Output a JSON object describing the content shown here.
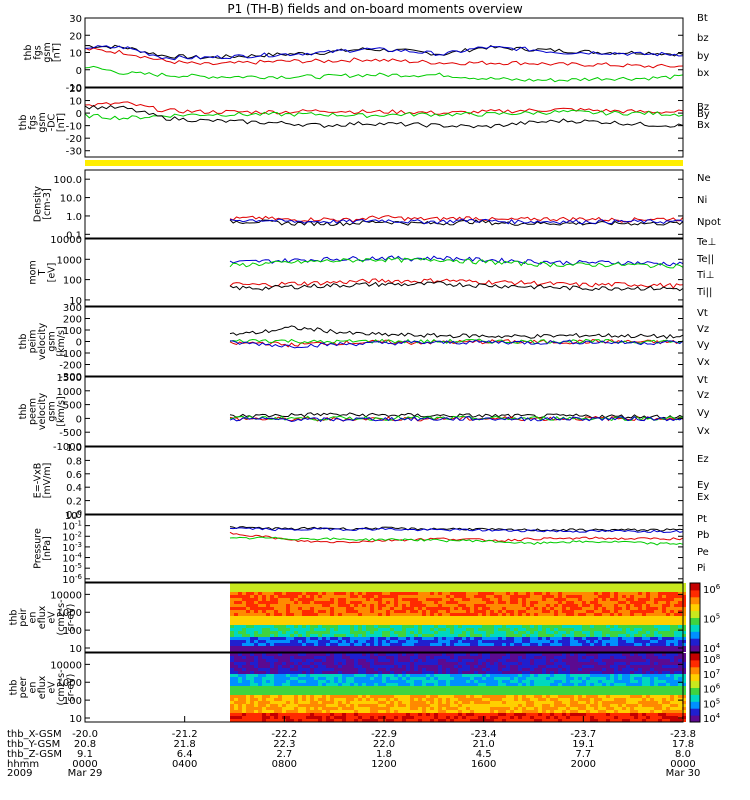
{
  "figure": {
    "title": "P1 (TH-B) fields and on-board moments overview"
  },
  "chart_data": [
    {
      "id": "fgs-gsm",
      "type": "line",
      "ylabel": [
        "thb",
        "fgs",
        "gsm",
        "[nT]"
      ],
      "yticks": [
        "30",
        "20",
        "10",
        "0",
        "-10"
      ],
      "ylim": [
        -10,
        30
      ],
      "series": [
        {
          "name": "Bt",
          "color": "#000000",
          "values": [
            14,
            13,
            8,
            7,
            8,
            9,
            10,
            12,
            11,
            9,
            13,
            12,
            11,
            10,
            10,
            9
          ]
        },
        {
          "name": "bz",
          "color": "#e00000",
          "values": [
            12,
            10,
            5,
            3,
            4,
            5,
            5,
            6,
            5,
            4,
            4,
            4,
            3,
            3,
            2,
            2
          ]
        },
        {
          "name": "by",
          "color": "#00cc00",
          "values": [
            2,
            -2,
            -3,
            -4,
            -4,
            -4,
            -4,
            -3,
            -3,
            -3,
            -5,
            -6,
            -6,
            -5,
            -5,
            -4
          ]
        },
        {
          "name": "bx",
          "color": "#0000cc",
          "values": [
            13,
            13,
            7,
            7,
            8,
            9,
            10,
            12,
            11,
            9,
            13,
            12,
            10,
            10,
            9,
            9
          ]
        }
      ]
    },
    {
      "id": "fgs-gsm-dc",
      "type": "line",
      "ylabel": [
        "thb",
        "fgs",
        "gsm",
        "-DC",
        "[nT]"
      ],
      "yticks": [
        "20",
        "10",
        "0",
        "-10",
        "-20",
        "-30"
      ],
      "ylim": [
        -35,
        20
      ],
      "series": [
        {
          "name": "Bz",
          "color": "#e00000",
          "values": [
            6,
            8,
            2,
            1,
            1,
            1,
            2,
            1,
            1,
            0,
            1,
            2,
            3,
            2,
            1,
            1
          ]
        },
        {
          "name": "By",
          "color": "#00cc00",
          "values": [
            -2,
            -4,
            -2,
            -1,
            -1,
            -1,
            -1,
            -2,
            -1,
            -1,
            -1,
            0,
            1,
            0,
            0,
            -1
          ]
        },
        {
          "name": "Bx",
          "color": "#000000",
          "values": [
            5,
            4,
            -4,
            -6,
            -7,
            -8,
            -10,
            -8,
            -9,
            -10,
            -11,
            -8,
            -6,
            -7,
            -9,
            -10
          ]
        }
      ]
    },
    {
      "id": "density",
      "type": "line",
      "ylabel": [
        "Density",
        "[cm-3]"
      ],
      "yticks": [
        "100.0",
        "10.0",
        "1.0",
        "0.1"
      ],
      "log_range": [
        -1.2,
        2.5
      ],
      "series": [
        {
          "name": "Ne",
          "color": "#e00000",
          "values": [
            0.7,
            0.8,
            0.6,
            0.7,
            0.6,
            0.9,
            0.7,
            0.7,
            0.8,
            0.6,
            0.7,
            0.7,
            0.7,
            0.6,
            0.7,
            0.7
          ]
        },
        {
          "name": "Ni",
          "color": "#000000",
          "values": [
            0.5,
            0.5,
            0.4,
            0.4,
            0.4,
            0.5,
            0.4,
            0.4,
            0.5,
            0.4,
            0.4,
            0.4,
            0.4,
            0.4,
            0.4,
            0.4
          ]
        },
        {
          "name": "Npot",
          "color": "#0000cc",
          "values": [
            0.6,
            0.6,
            0.5,
            0.5,
            0.5,
            0.6,
            0.5,
            0.5,
            0.6,
            0.5,
            0.5,
            0.5,
            0.5,
            0.5,
            0.5,
            0.5
          ]
        }
      ]
    },
    {
      "id": "temperature",
      "type": "line",
      "ylabel": [
        "mom",
        "T",
        "[eV]"
      ],
      "yticks": [
        "10000",
        "1000",
        "100",
        "10"
      ],
      "log_range": [
        0.7,
        4.0
      ],
      "series": [
        {
          "name": "Te⊥",
          "color": "#e00000",
          "values": [
            60,
            55,
            65,
            70,
            80,
            90,
            85,
            95,
            80,
            75,
            70,
            60,
            55,
            60,
            55,
            50
          ]
        },
        {
          "name": "Te||",
          "color": "#000000",
          "values": [
            40,
            38,
            45,
            50,
            55,
            60,
            58,
            65,
            55,
            50,
            45,
            40,
            38,
            40,
            38,
            35
          ]
        },
        {
          "name": "Ti⊥",
          "color": "#0000cc",
          "values": [
            700,
            800,
            900,
            1000,
            1100,
            1200,
            1100,
            1200,
            1000,
            900,
            800,
            700,
            700,
            700,
            650,
            600
          ]
        },
        {
          "name": "Ti||",
          "color": "#00cc00",
          "values": [
            500,
            600,
            700,
            800,
            900,
            1000,
            900,
            1000,
            800,
            700,
            600,
            550,
            550,
            550,
            500,
            500
          ]
        }
      ]
    },
    {
      "id": "peim-velocity",
      "type": "line",
      "ylabel": [
        "thb",
        "peim",
        "velocity",
        "gsm",
        "[km/s]"
      ],
      "yticks": [
        "300",
        "200",
        "100",
        "0",
        "-100",
        "-200",
        "-300"
      ],
      "ylim": [
        -300,
        300
      ],
      "series": [
        {
          "name": "Vt",
          "color": "#000000",
          "values": [
            60,
            80,
            120,
            100,
            70,
            60,
            55,
            50,
            50,
            45,
            45,
            50,
            55,
            50,
            45,
            40
          ]
        },
        {
          "name": "Vz",
          "color": "#e00000",
          "values": [
            -20,
            -10,
            -30,
            -15,
            -10,
            -5,
            -10,
            -5,
            -5,
            0,
            -5,
            -5,
            0,
            0,
            -5,
            -5
          ]
        },
        {
          "name": "Vy",
          "color": "#00cc00",
          "values": [
            0,
            10,
            5,
            -5,
            0,
            5,
            0,
            0,
            5,
            0,
            0,
            5,
            0,
            0,
            0,
            0
          ]
        },
        {
          "name": "Vx",
          "color": "#0000cc",
          "values": [
            -10,
            -20,
            -40,
            -30,
            -20,
            -15,
            -10,
            -10,
            -5,
            -5,
            -10,
            -5,
            -5,
            -10,
            -10,
            -5
          ]
        }
      ]
    },
    {
      "id": "peem-velocity",
      "type": "line",
      "ylabel": [
        "thb",
        "peem",
        "velocity",
        "gsm",
        "[km/s]"
      ],
      "yticks": [
        "1500",
        "1000",
        "500",
        "0",
        "-500",
        "-1000"
      ],
      "ylim": [
        -1000,
        1500
      ],
      "series": [
        {
          "name": "Vt",
          "color": "#000000",
          "values": [
            80,
            100,
            120,
            150,
            130,
            120,
            110,
            100,
            100,
            90,
            80,
            90,
            80,
            70,
            70,
            60
          ]
        },
        {
          "name": "Vz",
          "color": "#e00000",
          "values": [
            -10,
            -20,
            -30,
            -40,
            -20,
            -10,
            -20,
            -10,
            -10,
            0,
            -10,
            -10,
            0,
            -10,
            0,
            0
          ]
        },
        {
          "name": "Vy",
          "color": "#00cc00",
          "values": [
            10,
            20,
            10,
            0,
            10,
            0,
            10,
            0,
            10,
            0,
            0,
            10,
            0,
            0,
            0,
            0
          ]
        },
        {
          "name": "Vx",
          "color": "#0000cc",
          "values": [
            -20,
            -30,
            -40,
            -50,
            -30,
            -20,
            -20,
            -20,
            -10,
            -10,
            -20,
            -10,
            -10,
            -10,
            -10,
            -10
          ]
        }
      ]
    },
    {
      "id": "efield",
      "type": "line",
      "ylabel": [
        "E=-VxB",
        "[mV/m]"
      ],
      "yticks": [
        "1.0",
        "0.8",
        "0.6",
        "0.4",
        "0.2",
        "0.0"
      ],
      "ylim": [
        0,
        1
      ],
      "series": [
        {
          "name": "Ez",
          "color": "#e00000",
          "values": []
        },
        {
          "name": "Ey",
          "color": "#00cc00",
          "values": []
        },
        {
          "name": "Ex",
          "color": "#0000cc",
          "values": []
        }
      ]
    },
    {
      "id": "pressure",
      "type": "line",
      "ylabel": [
        "Pressure",
        "[nPa]"
      ],
      "yticks": [
        "10^0",
        "10^-1",
        "10^-2",
        "10^-3",
        "10^-4",
        "10^-5",
        "10^-6"
      ],
      "log_range": [
        -6.3,
        0
      ],
      "series": [
        {
          "name": "Pt",
          "color": "#000000",
          "values": [
            0.07,
            0.06,
            0.05,
            0.06,
            0.05,
            0.06,
            0.05,
            0.05,
            0.05,
            0.04,
            0.04,
            0.04,
            0.04,
            0.04,
            0.04,
            0.04
          ]
        },
        {
          "name": "Pb",
          "color": "#e00000",
          "values": [
            0.02,
            0.01,
            0.004,
            0.003,
            0.003,
            0.004,
            0.005,
            0.006,
            0.005,
            0.004,
            0.006,
            0.006,
            0.007,
            0.006,
            0.006,
            0.006
          ]
        },
        {
          "name": "Pe",
          "color": "#00cc00",
          "values": [
            0.006,
            0.007,
            0.006,
            0.006,
            0.005,
            0.005,
            0.005,
            0.004,
            0.004,
            0.003,
            0.002,
            0.003,
            0.003,
            0.003,
            0.002,
            0.002
          ]
        },
        {
          "name": "Pi",
          "color": "#0000cc",
          "values": [
            0.06,
            0.05,
            0.04,
            0.05,
            0.045,
            0.05,
            0.04,
            0.04,
            0.04,
            0.035,
            0.035,
            0.03,
            0.03,
            0.03,
            0.03,
            0.03
          ]
        }
      ]
    },
    {
      "id": "peir-spectrogram",
      "type": "heatmap",
      "ylabel": [
        "thb",
        "peir",
        "en",
        "eflux",
        "eV",
        "(cm2-s-",
        "sr-eV)"
      ],
      "yticks": [
        "10000",
        "1000",
        "100",
        "10"
      ],
      "colorbar_ticks": [
        "10^6",
        "10^5",
        "10^4"
      ]
    },
    {
      "id": "peer-spectrogram",
      "type": "heatmap",
      "ylabel": [
        "thb",
        "peer",
        "en",
        "eflux",
        "eV",
        "(cm2-s-",
        "sr-eV)"
      ],
      "yticks": [
        "10000",
        "1000",
        "100",
        "10"
      ],
      "colorbar_ticks": [
        "10^8",
        "10^7",
        "10^6",
        "10^5",
        "10^4"
      ]
    }
  ],
  "x_axis": {
    "row_labels": [
      "thb_X-GSM",
      "thb_Y-GSM",
      "thb_Z-GSM",
      "hhmm",
      "2009"
    ],
    "ticks": [
      {
        "x": "-20.0",
        "y": "20.8",
        "z": "9.1",
        "hhmm": "0000",
        "date": "Mar 29"
      },
      {
        "x": "-21.2",
        "y": "21.8",
        "z": "6.4",
        "hhmm": "0400",
        "date": ""
      },
      {
        "x": "-22.2",
        "y": "22.3",
        "z": "2.7",
        "hhmm": "0800",
        "date": ""
      },
      {
        "x": "-22.9",
        "y": "22.0",
        "z": "1.8",
        "hhmm": "1200",
        "date": ""
      },
      {
        "x": "-23.4",
        "y": "21.0",
        "z": "4.5",
        "hhmm": "1600",
        "date": ""
      },
      {
        "x": "-23.7",
        "y": "19.1",
        "z": "7.7",
        "hhmm": "2000",
        "date": ""
      },
      {
        "x": "-23.8",
        "y": "17.8",
        "z": "8.0",
        "hhmm": "0000",
        "date": "Mar 30"
      }
    ]
  }
}
